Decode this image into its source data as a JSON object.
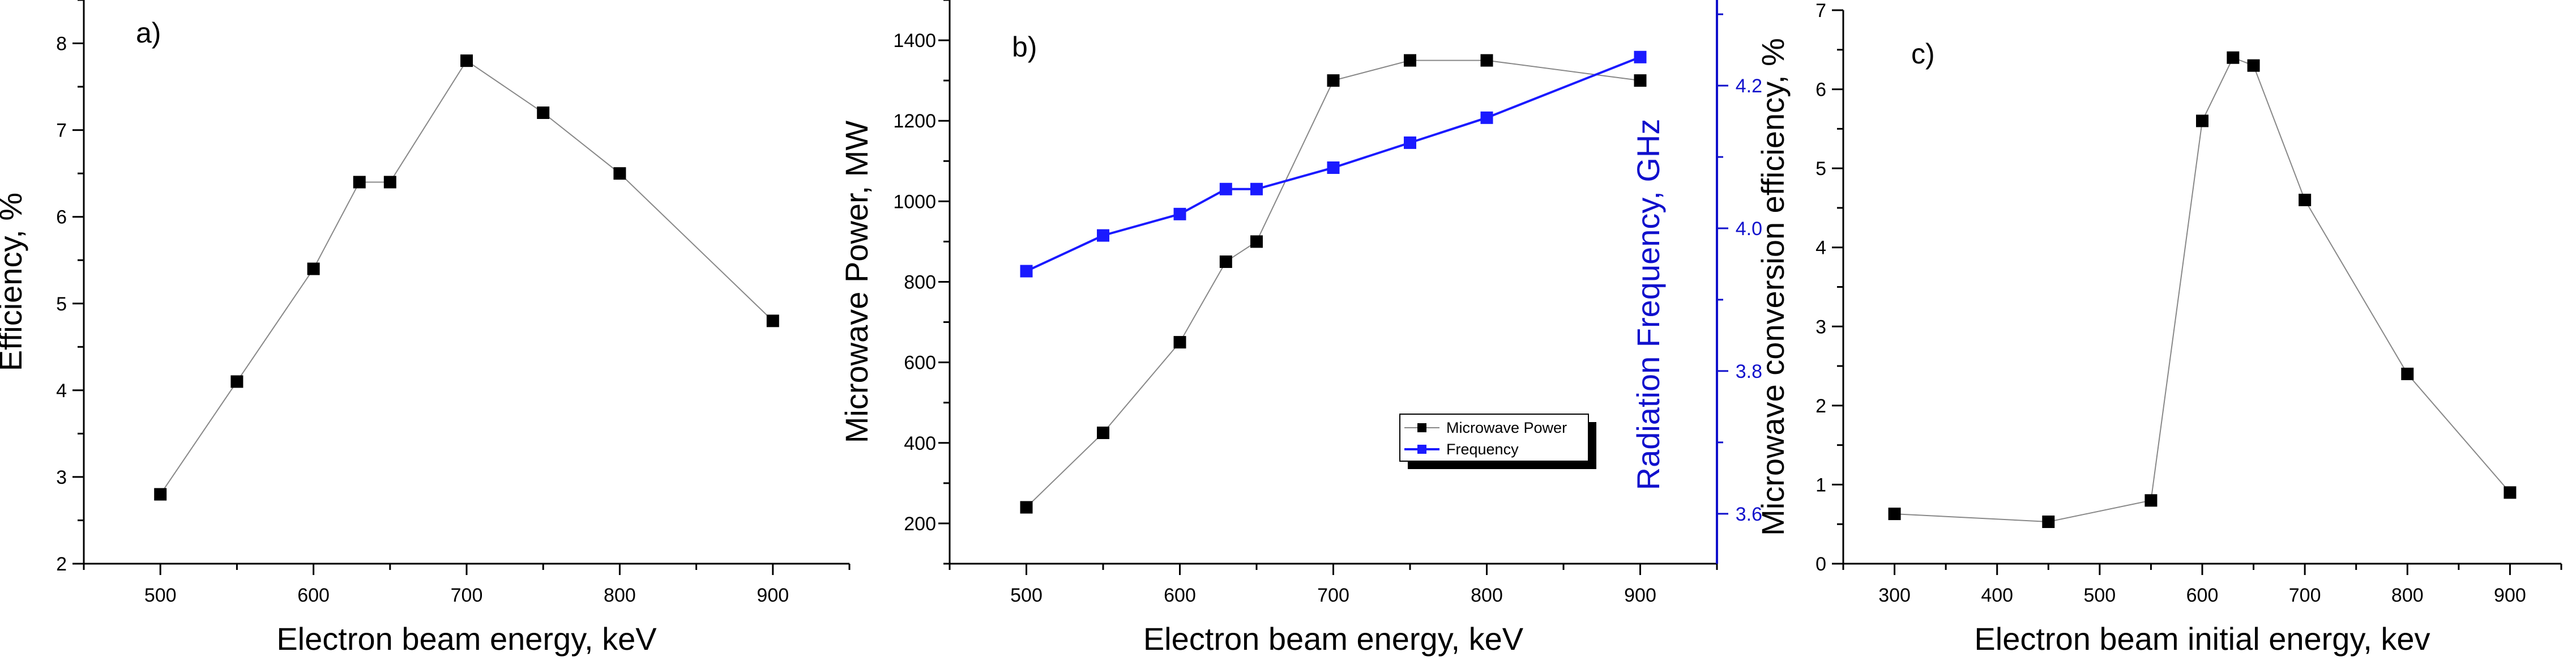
{
  "colors": {
    "axis": "#000000",
    "series_black": "#000000",
    "series_line_gray": "#888888",
    "series_blue": "#1a1aff",
    "right_axis_blue": "#1010cc"
  },
  "chart_data": [
    {
      "id": "a",
      "type": "line",
      "panel_label": "a)",
      "xlabel": "Electron beam energy, keV",
      "ylabel": "Efficiency, %",
      "xlim": [
        450,
        950
      ],
      "ylim": [
        2,
        8.5
      ],
      "xticks": [
        500,
        600,
        700,
        800,
        900
      ],
      "xtick_labels": [
        "500",
        "600",
        "700",
        "800",
        "900"
      ],
      "yticks": [
        2,
        3,
        4,
        5,
        6,
        7,
        8
      ],
      "ytick_labels": [
        "2",
        "3",
        "4",
        "5",
        "6",
        "7",
        "8"
      ],
      "series": [
        {
          "name": "Efficiency",
          "x": [
            500,
            550,
            600,
            630,
            650,
            700,
            750,
            800,
            900
          ],
          "values": [
            2.8,
            4.1,
            5.4,
            6.4,
            6.4,
            7.8,
            7.2,
            6.5,
            4.8
          ]
        }
      ]
    },
    {
      "id": "b",
      "type": "line",
      "panel_label": "b)",
      "xlabel": "Electron beam energy, keV",
      "ylabel": "Microwave Power, MW",
      "y2label": "Radiation Frequency, GHz",
      "xlim": [
        450,
        950
      ],
      "ylim": [
        100,
        1500
      ],
      "y2lim": [
        3.53,
        4.32
      ],
      "xticks": [
        500,
        600,
        700,
        800,
        900
      ],
      "xtick_labels": [
        "500",
        "600",
        "700",
        "800",
        "900"
      ],
      "yticks": [
        200,
        400,
        600,
        800,
        1000,
        1200,
        1400
      ],
      "ytick_labels": [
        "200",
        "400",
        "600",
        "800",
        "1000",
        "1200",
        "1400"
      ],
      "y2ticks": [
        3.6,
        3.8,
        4.0,
        4.2
      ],
      "y2tick_labels": [
        "3.6",
        "3.8",
        "4.0",
        "4.2"
      ],
      "legend_position": "lower-right",
      "series": [
        {
          "name": "Microwave Power",
          "axis": "left",
          "x": [
            500,
            550,
            600,
            630,
            650,
            700,
            750,
            800,
            900
          ],
          "values": [
            240,
            425,
            650,
            850,
            900,
            1300,
            1350,
            1350,
            1300
          ]
        },
        {
          "name": "Frequency",
          "axis": "right",
          "x": [
            500,
            550,
            600,
            630,
            650,
            700,
            750,
            800,
            900
          ],
          "values": [
            3.94,
            3.99,
            4.02,
            4.055,
            4.055,
            4.085,
            4.12,
            4.155,
            4.24
          ]
        }
      ]
    },
    {
      "id": "c",
      "type": "line",
      "panel_label": "c)",
      "xlabel": "Electron beam initial energy, kev",
      "ylabel": "Microwave conversion efficiency, %",
      "xlim": [
        250,
        950
      ],
      "ylim": [
        0,
        7
      ],
      "xticks": [
        300,
        400,
        500,
        600,
        700,
        800,
        900
      ],
      "xtick_labels": [
        "300",
        "400",
        "500",
        "600",
        "700",
        "800",
        "900"
      ],
      "yticks": [
        0,
        1,
        2,
        3,
        4,
        5,
        6,
        7
      ],
      "ytick_labels": [
        "0",
        "1",
        "2",
        "3",
        "4",
        "5",
        "6",
        "7"
      ],
      "series": [
        {
          "name": "Conversion efficiency",
          "x": [
            300,
            450,
            550,
            600,
            630,
            650,
            700,
            800,
            900
          ],
          "values": [
            0.63,
            0.53,
            0.8,
            5.6,
            6.4,
            6.3,
            4.6,
            2.4,
            0.9
          ]
        }
      ]
    }
  ]
}
